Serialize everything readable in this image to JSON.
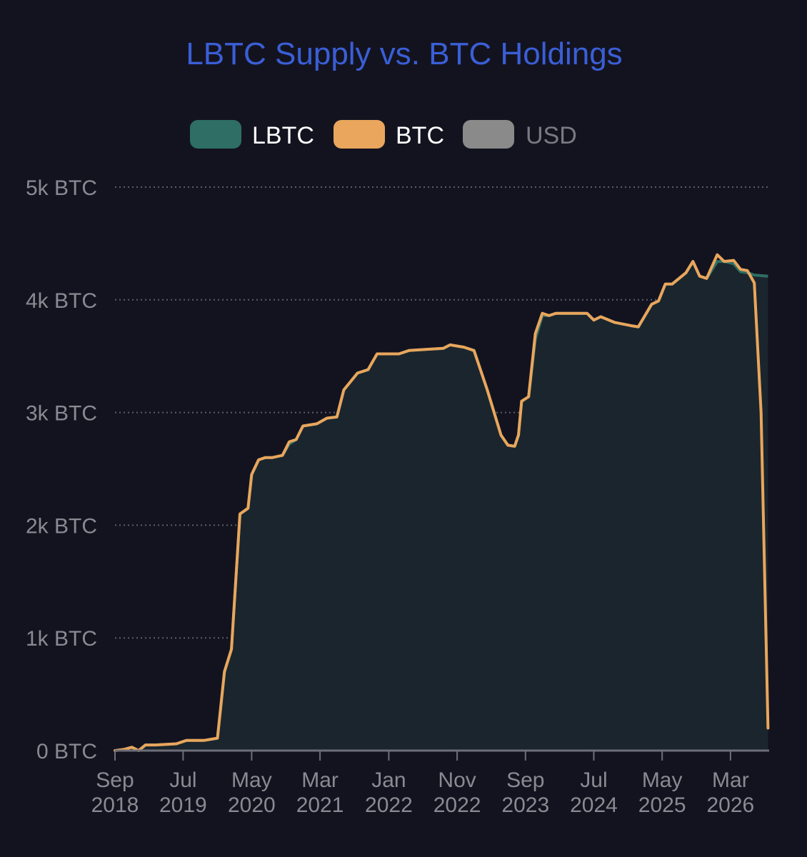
{
  "chart_data": {
    "type": "area",
    "title": "LBTC Supply vs. BTC Holdings",
    "legend": {
      "position": "top-center",
      "items": [
        {
          "label": "LBTC",
          "color": "#2e6e64",
          "label_color": "#ffffff"
        },
        {
          "label": "BTC",
          "color": "#e9a65c",
          "label_color": "#ffffff"
        },
        {
          "label": "USD",
          "color": "#8a8a8a",
          "label_color": "#7a7a82"
        }
      ]
    },
    "y_axis": {
      "ticks": [
        {
          "value": 0,
          "label": "0 BTC"
        },
        {
          "value": 1000,
          "label": "1k BTC"
        },
        {
          "value": 2000,
          "label": "2k BTC"
        },
        {
          "value": 3000,
          "label": "3k BTC"
        },
        {
          "value": 4000,
          "label": "4k BTC"
        },
        {
          "value": 5000,
          "label": "5k BTC"
        }
      ],
      "ylim": [
        0,
        5000
      ],
      "grid": true,
      "grid_style": "dotted"
    },
    "x_axis": {
      "xlim": [
        "2018-09-01",
        "2026-08-20"
      ],
      "ticks": [
        {
          "date": "2018-09-01",
          "line1": "Sep",
          "line2": "2018"
        },
        {
          "date": "2019-07-01",
          "line1": "Jul",
          "line2": "2019"
        },
        {
          "date": "2020-05-01",
          "line1": "May",
          "line2": "2020"
        },
        {
          "date": "2021-03-01",
          "line1": "Mar",
          "line2": "2021"
        },
        {
          "date": "2022-01-01",
          "line1": "Jan",
          "line2": "2022"
        },
        {
          "date": "2022-11-01",
          "line1": "Nov",
          "line2": "2022"
        },
        {
          "date": "2023-09-01",
          "line1": "Sep",
          "line2": "2023"
        },
        {
          "date": "2024-07-01",
          "line1": "Jul",
          "line2": "2024"
        },
        {
          "date": "2025-05-01",
          "line1": "May",
          "line2": "2025"
        },
        {
          "date": "2026-03-01",
          "line1": "Mar",
          "line2": "2026"
        }
      ]
    },
    "series": [
      {
        "name": "BTC",
        "type": "line",
        "color": "#e9a65c",
        "points": [
          [
            "2018-09-01",
            0
          ],
          [
            "2018-10-10",
            10
          ],
          [
            "2018-11-15",
            30
          ],
          [
            "2018-12-15",
            0
          ],
          [
            "2019-01-15",
            50
          ],
          [
            "2019-03-01",
            50
          ],
          [
            "2019-06-01",
            60
          ],
          [
            "2019-07-15",
            90
          ],
          [
            "2019-10-01",
            90
          ],
          [
            "2019-12-01",
            110
          ],
          [
            "2020-01-01",
            700
          ],
          [
            "2020-02-01",
            900
          ],
          [
            "2020-03-10",
            2100
          ],
          [
            "2020-04-15",
            2150
          ],
          [
            "2020-05-01",
            2450
          ],
          [
            "2020-06-01",
            2580
          ],
          [
            "2020-07-01",
            2600
          ],
          [
            "2020-08-01",
            2600
          ],
          [
            "2020-09-15",
            2620
          ],
          [
            "2020-10-15",
            2740
          ],
          [
            "2020-11-15",
            2760
          ],
          [
            "2020-12-15",
            2880
          ],
          [
            "2021-02-15",
            2900
          ],
          [
            "2021-04-01",
            2950
          ],
          [
            "2021-05-15",
            2960
          ],
          [
            "2021-06-15",
            3200
          ],
          [
            "2021-08-15",
            3350
          ],
          [
            "2021-10-01",
            3380
          ],
          [
            "2021-11-10",
            3520
          ],
          [
            "2022-02-15",
            3520
          ],
          [
            "2022-04-01",
            3550
          ],
          [
            "2022-06-15",
            3560
          ],
          [
            "2022-09-01",
            3570
          ],
          [
            "2022-10-01",
            3600
          ],
          [
            "2022-12-01",
            3580
          ],
          [
            "2023-01-15",
            3550
          ],
          [
            "2023-03-15",
            3200
          ],
          [
            "2023-05-15",
            2800
          ],
          [
            "2023-06-15",
            2710
          ],
          [
            "2023-07-15",
            2700
          ],
          [
            "2023-08-01",
            2800
          ],
          [
            "2023-08-15",
            3100
          ],
          [
            "2023-09-15",
            3140
          ],
          [
            "2023-10-15",
            3700
          ],
          [
            "2023-11-15",
            3880
          ],
          [
            "2023-12-15",
            3860
          ],
          [
            "2024-01-15",
            3880
          ],
          [
            "2024-06-01",
            3880
          ],
          [
            "2024-07-01",
            3820
          ],
          [
            "2024-08-01",
            3850
          ],
          [
            "2024-10-01",
            3800
          ],
          [
            "2024-12-15",
            3770
          ],
          [
            "2025-01-15",
            3760
          ],
          [
            "2025-03-15",
            3960
          ],
          [
            "2025-04-15",
            3990
          ],
          [
            "2025-05-15",
            4140
          ],
          [
            "2025-06-15",
            4140
          ],
          [
            "2025-08-15",
            4240
          ],
          [
            "2025-09-15",
            4340
          ],
          [
            "2025-10-15",
            4210
          ],
          [
            "2025-11-15",
            4190
          ],
          [
            "2026-01-01",
            4400
          ],
          [
            "2026-02-01",
            4340
          ],
          [
            "2026-03-15",
            4350
          ],
          [
            "2026-04-15",
            4270
          ],
          [
            "2026-05-15",
            4260
          ],
          [
            "2026-06-15",
            4150
          ],
          [
            "2026-07-15",
            3000
          ],
          [
            "2026-08-15",
            200
          ]
        ]
      },
      {
        "name": "LBTC",
        "type": "area",
        "color": "#2e6e64",
        "fill": "#1b252d",
        "points": [
          [
            "2018-09-01",
            0
          ],
          [
            "2018-10-10",
            10
          ],
          [
            "2018-11-15",
            30
          ],
          [
            "2018-12-15",
            0
          ],
          [
            "2019-01-15",
            50
          ],
          [
            "2019-03-01",
            50
          ],
          [
            "2019-06-01",
            60
          ],
          [
            "2019-07-15",
            90
          ],
          [
            "2019-10-01",
            90
          ],
          [
            "2019-12-01",
            110
          ],
          [
            "2020-01-01",
            700
          ],
          [
            "2020-02-01",
            900
          ],
          [
            "2020-03-10",
            2100
          ],
          [
            "2020-04-15",
            2150
          ],
          [
            "2020-05-01",
            2450
          ],
          [
            "2020-06-01",
            2580
          ],
          [
            "2020-07-01",
            2600
          ],
          [
            "2020-08-01",
            2600
          ],
          [
            "2020-09-15",
            2620
          ],
          [
            "2020-10-15",
            2720
          ],
          [
            "2020-11-15",
            2760
          ],
          [
            "2020-12-15",
            2880
          ],
          [
            "2021-02-15",
            2900
          ],
          [
            "2021-04-01",
            2950
          ],
          [
            "2021-05-15",
            2960
          ],
          [
            "2021-06-15",
            3200
          ],
          [
            "2021-08-15",
            3350
          ],
          [
            "2021-10-01",
            3380
          ],
          [
            "2021-11-10",
            3520
          ],
          [
            "2022-02-15",
            3520
          ],
          [
            "2022-04-01",
            3550
          ],
          [
            "2022-06-15",
            3560
          ],
          [
            "2022-09-01",
            3570
          ],
          [
            "2022-10-01",
            3600
          ],
          [
            "2022-12-01",
            3580
          ],
          [
            "2023-01-15",
            3550
          ],
          [
            "2023-03-15",
            3200
          ],
          [
            "2023-05-15",
            2800
          ],
          [
            "2023-06-15",
            2710
          ],
          [
            "2023-07-15",
            2700
          ],
          [
            "2023-08-01",
            2800
          ],
          [
            "2023-08-15",
            3100
          ],
          [
            "2023-09-15",
            3140
          ],
          [
            "2023-10-15",
            3650
          ],
          [
            "2023-11-15",
            3860
          ],
          [
            "2023-12-15",
            3860
          ],
          [
            "2024-01-15",
            3880
          ],
          [
            "2024-06-01",
            3880
          ],
          [
            "2024-07-01",
            3820
          ],
          [
            "2024-08-01",
            3850
          ],
          [
            "2024-10-01",
            3800
          ],
          [
            "2024-12-15",
            3770
          ],
          [
            "2025-01-15",
            3760
          ],
          [
            "2025-03-15",
            3960
          ],
          [
            "2025-04-15",
            3990
          ],
          [
            "2025-05-15",
            4140
          ],
          [
            "2025-06-15",
            4140
          ],
          [
            "2025-08-15",
            4240
          ],
          [
            "2025-09-15",
            4340
          ],
          [
            "2025-10-15",
            4210
          ],
          [
            "2025-11-15",
            4190
          ],
          [
            "2026-01-01",
            4340
          ],
          [
            "2026-02-01",
            4340
          ],
          [
            "2026-03-15",
            4320
          ],
          [
            "2026-04-15",
            4250
          ],
          [
            "2026-05-15",
            4240
          ],
          [
            "2026-06-15",
            4220
          ],
          [
            "2026-08-15",
            4210
          ]
        ]
      }
    ]
  }
}
